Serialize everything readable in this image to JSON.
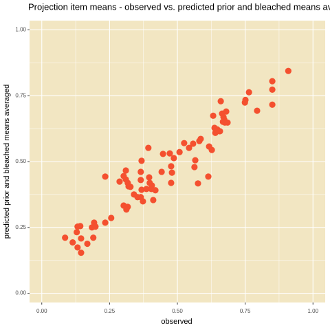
{
  "chart_data": {
    "type": "scatter",
    "title": "Projection item means - observed vs. predicted prior and bleached means av",
    "x_label": "observed",
    "y_label": "predicted prior and bleached means averaged",
    "color": "#f4502f",
    "background": "#f2e6c2",
    "grid": true,
    "xlim": [
      -0.045,
      1.045
    ],
    "ylim": [
      -0.035,
      1.035
    ],
    "xticks": [
      {
        "value": 0,
        "label": "0.00"
      },
      0.25,
      {
        "value": 0.5,
        "label": "0.50"
      },
      0.75,
      {
        "value": 1,
        "label": "1.00"
      }
    ],
    "yticks": [
      {
        "value": 0,
        "label": "0.00"
      },
      0.25,
      {
        "value": 0.5,
        "label": "0.50"
      },
      0.75,
      {
        "value": 1,
        "label": "1.00"
      }
    ],
    "x": [
      0.086,
      0.114,
      0.132,
      0.129,
      0.142,
      0.132,
      0.145,
      0.145,
      0.168,
      0.185,
      0.19,
      0.193,
      0.198,
      0.234,
      0.256,
      0.234,
      0.287,
      0.302,
      0.31,
      0.317,
      0.32,
      0.31,
      0.327,
      0.302,
      0.312,
      0.317,
      0.34,
      0.353,
      0.365,
      0.373,
      0.368,
      0.365,
      0.368,
      0.365,
      0.386,
      0.396,
      0.398,
      0.406,
      0.404,
      0.411,
      0.419,
      0.393,
      0.442,
      0.447,
      0.472,
      0.48,
      0.477,
      0.477,
      0.487,
      0.508,
      0.525,
      0.543,
      0.558,
      0.563,
      0.566,
      0.576,
      0.581,
      0.586,
      0.614,
      0.617,
      0.627,
      0.632,
      0.64,
      0.647,
      0.655,
      0.637,
      0.657,
      0.665,
      0.668,
      0.673,
      0.675,
      0.67,
      0.68,
      0.685,
      0.66,
      0.749,
      0.764,
      0.751,
      0.794,
      0.85,
      0.85,
      0.85,
      0.909
    ],
    "values": [
      0.211,
      0.193,
      0.253,
      0.232,
      0.255,
      0.174,
      0.208,
      0.154,
      0.188,
      0.25,
      0.211,
      0.268,
      0.253,
      0.268,
      0.286,
      0.443,
      0.424,
      0.445,
      0.432,
      0.419,
      0.406,
      0.466,
      0.404,
      0.333,
      0.318,
      0.328,
      0.375,
      0.365,
      0.365,
      0.349,
      0.393,
      0.461,
      0.503,
      0.43,
      0.396,
      0.44,
      0.419,
      0.409,
      0.396,
      0.354,
      0.391,
      0.552,
      0.461,
      0.529,
      0.531,
      0.458,
      0.419,
      0.482,
      0.513,
      0.536,
      0.57,
      0.552,
      0.568,
      0.479,
      0.505,
      0.417,
      0.578,
      0.586,
      0.443,
      0.557,
      0.544,
      0.674,
      0.609,
      0.622,
      0.615,
      0.628,
      0.615,
      0.682,
      0.651,
      0.659,
      0.648,
      0.669,
      0.69,
      0.648,
      0.729,
      0.724,
      0.763,
      0.734,
      0.693,
      0.716,
      0.773,
      0.805,
      0.844
    ]
  }
}
